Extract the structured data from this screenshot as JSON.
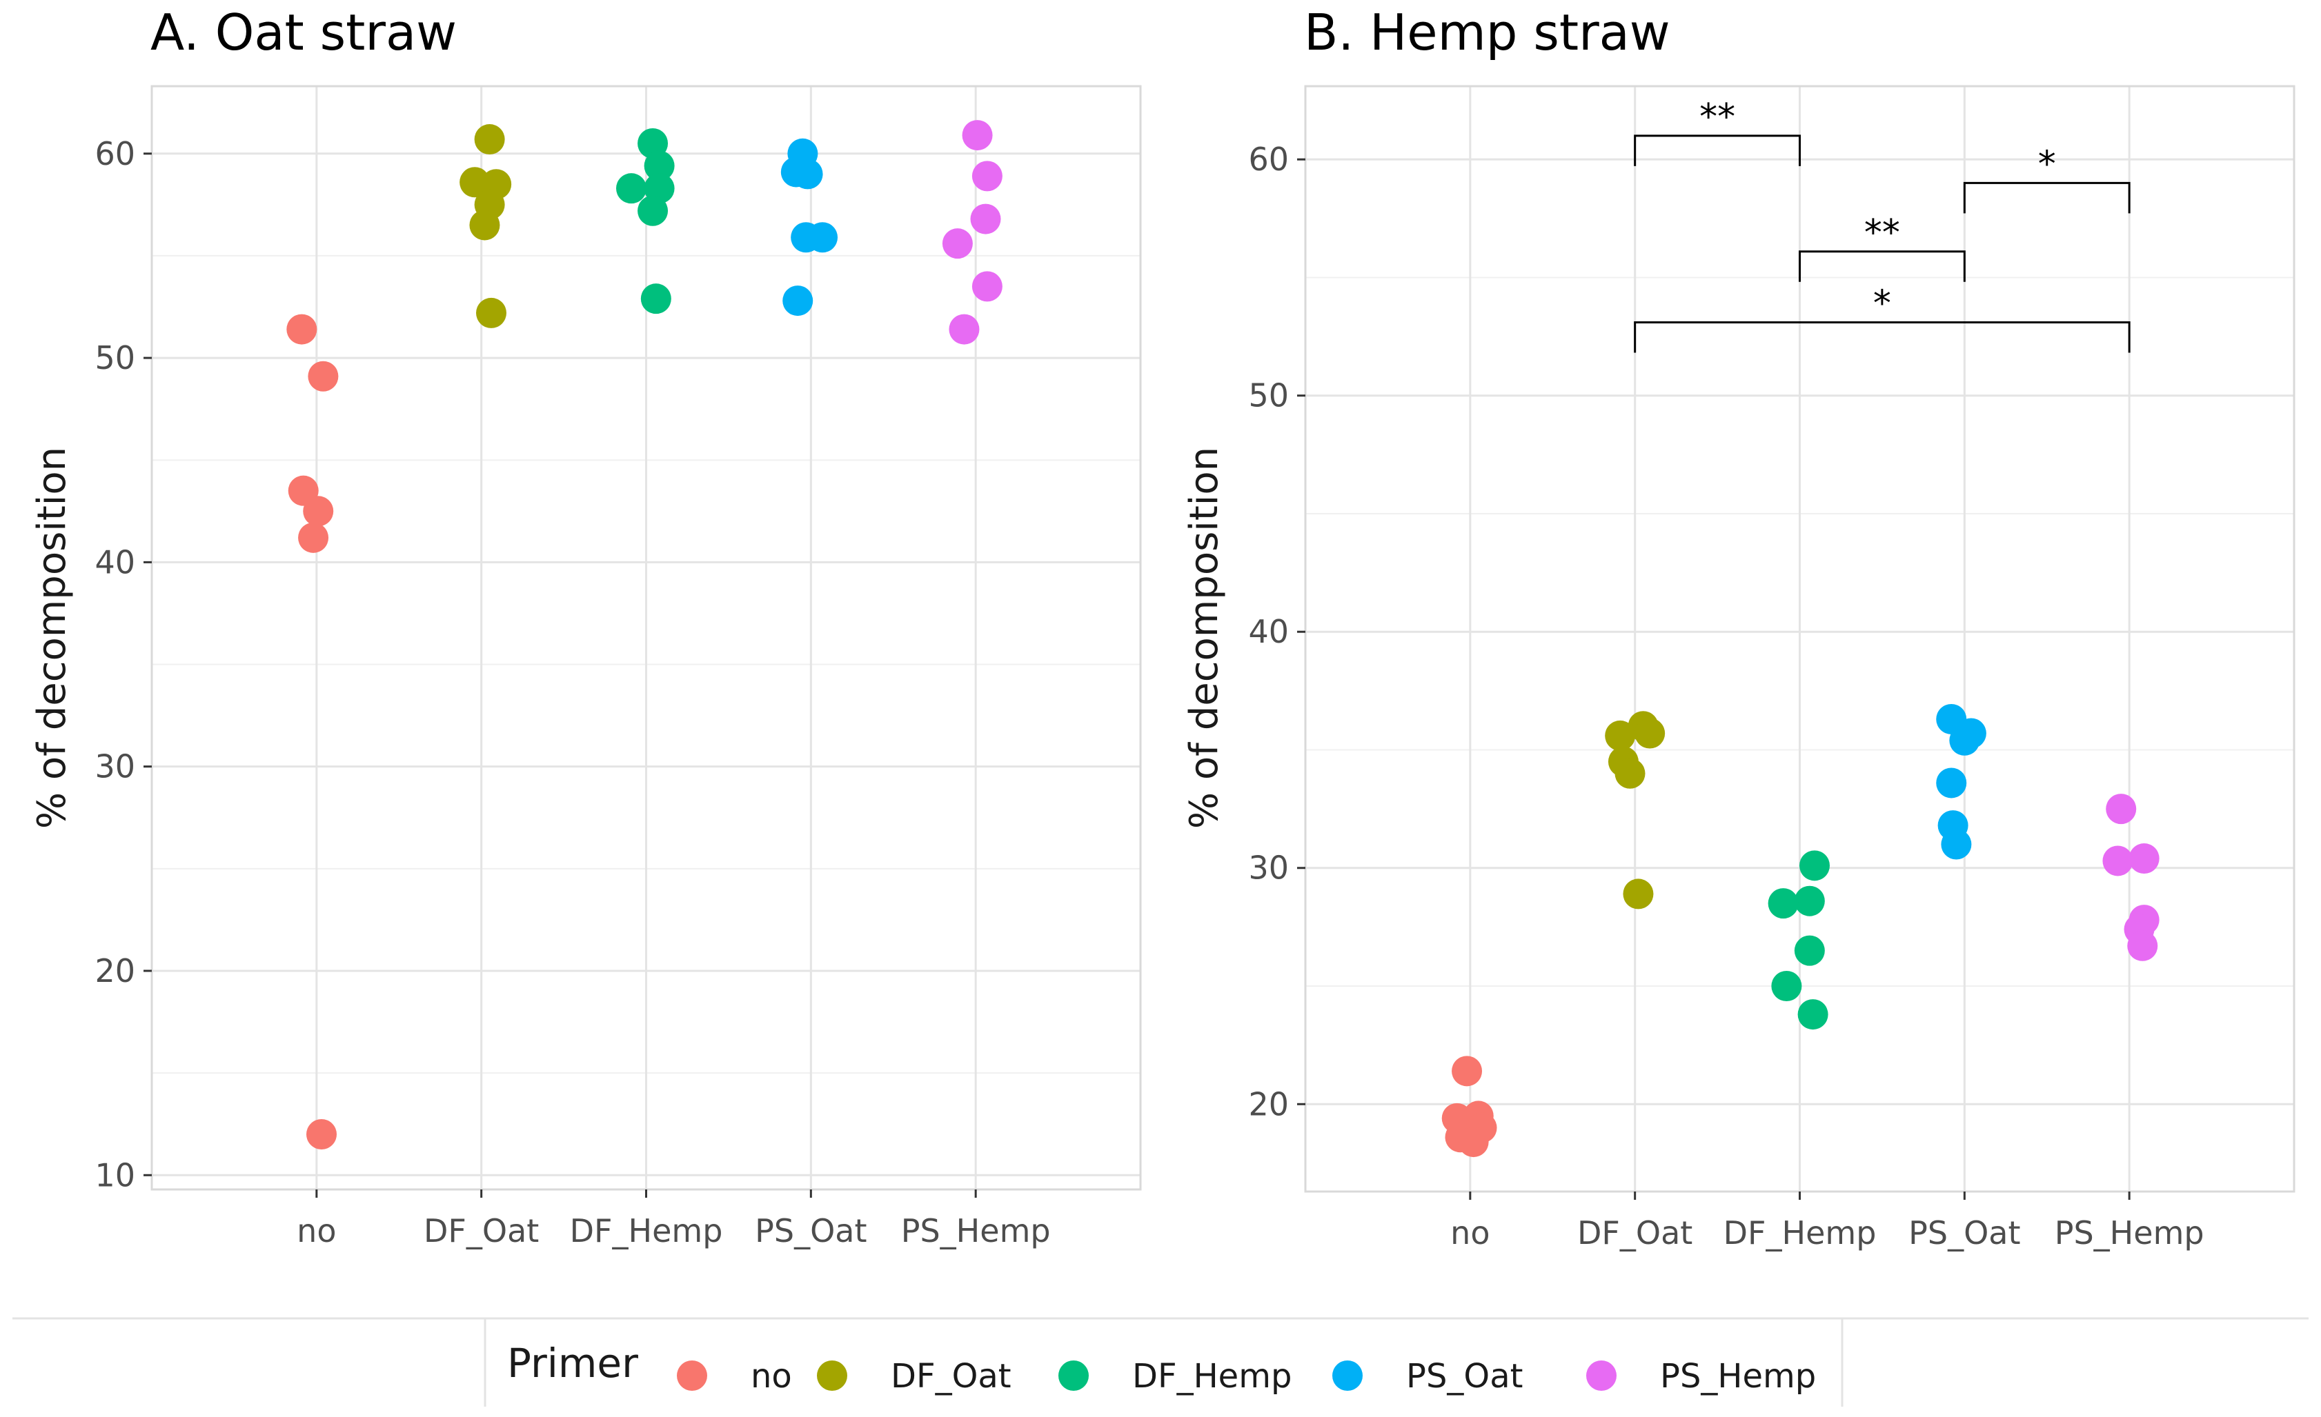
{
  "chart_data": [
    {
      "type": "scatter",
      "title": "A. Oat straw",
      "xlabel": "",
      "ylabel": "% of decomposition",
      "categories": [
        "no",
        "DF_Oat",
        "DF_Hemp",
        "PS_Oat",
        "PS_Hemp"
      ],
      "ylim": [
        9.3,
        63.3
      ],
      "yticks": [
        10,
        20,
        30,
        40,
        50,
        60
      ],
      "grid": true,
      "series": [
        {
          "name": "no",
          "points": [
            {
              "x": -0.09,
              "y": 51.4
            },
            {
              "x": 0.04,
              "y": 49.1
            },
            {
              "x": -0.08,
              "y": 43.5
            },
            {
              "x": 0.01,
              "y": 42.5
            },
            {
              "x": -0.02,
              "y": 41.2
            },
            {
              "x": 0.03,
              "y": 12.0
            }
          ]
        },
        {
          "name": "DF_Oat",
          "points": [
            {
              "x": 0.05,
              "y": 60.7
            },
            {
              "x": -0.04,
              "y": 58.6
            },
            {
              "x": 0.09,
              "y": 58.5
            },
            {
              "x": 0.05,
              "y": 57.5
            },
            {
              "x": 0.02,
              "y": 56.5
            },
            {
              "x": 0.06,
              "y": 52.2
            }
          ]
        },
        {
          "name": "DF_Hemp",
          "points": [
            {
              "x": 0.04,
              "y": 60.5
            },
            {
              "x": 0.08,
              "y": 59.4
            },
            {
              "x": -0.09,
              "y": 58.3
            },
            {
              "x": 0.08,
              "y": 58.3
            },
            {
              "x": 0.04,
              "y": 57.2
            },
            {
              "x": 0.06,
              "y": 52.9
            }
          ]
        },
        {
          "name": "PS_Oat",
          "points": [
            {
              "x": -0.05,
              "y": 60.0
            },
            {
              "x": -0.09,
              "y": 59.1
            },
            {
              "x": -0.02,
              "y": 59.0
            },
            {
              "x": -0.03,
              "y": 55.9
            },
            {
              "x": 0.07,
              "y": 55.9
            },
            {
              "x": -0.08,
              "y": 52.8
            }
          ]
        },
        {
          "name": "PS_Hemp",
          "points": [
            {
              "x": 0.01,
              "y": 60.9
            },
            {
              "x": 0.07,
              "y": 58.9
            },
            {
              "x": 0.06,
              "y": 56.8
            },
            {
              "x": -0.11,
              "y": 55.6
            },
            {
              "x": 0.07,
              "y": 53.5
            },
            {
              "x": -0.07,
              "y": 51.4
            }
          ]
        }
      ],
      "annotations": []
    },
    {
      "type": "scatter",
      "title": "B. Hemp straw",
      "xlabel": "",
      "ylabel": "% of decomposition",
      "categories": [
        "no",
        "DF_Oat",
        "DF_Hemp",
        "PS_Oat",
        "PS_Hemp"
      ],
      "ylim": [
        16.3,
        63.1
      ],
      "yticks": [
        20,
        30,
        40,
        50,
        60
      ],
      "grid": true,
      "series": [
        {
          "name": "no",
          "points": [
            {
              "x": -0.02,
              "y": 21.4
            },
            {
              "x": 0.05,
              "y": 19.5
            },
            {
              "x": -0.08,
              "y": 19.4
            },
            {
              "x": 0.07,
              "y": 19.0
            },
            {
              "x": -0.06,
              "y": 18.6
            },
            {
              "x": 0.02,
              "y": 18.4
            }
          ]
        },
        {
          "name": "DF_Oat",
          "points": [
            {
              "x": 0.05,
              "y": 36.0
            },
            {
              "x": 0.09,
              "y": 35.7
            },
            {
              "x": -0.09,
              "y": 35.6
            },
            {
              "x": -0.07,
              "y": 34.5
            },
            {
              "x": -0.03,
              "y": 34.0
            },
            {
              "x": 0.02,
              "y": 28.9
            }
          ]
        },
        {
          "name": "DF_Hemp",
          "points": [
            {
              "x": 0.09,
              "y": 30.1
            },
            {
              "x": 0.06,
              "y": 28.6
            },
            {
              "x": -0.1,
              "y": 28.5
            },
            {
              "x": 0.06,
              "y": 26.5
            },
            {
              "x": -0.08,
              "y": 25.0
            },
            {
              "x": 0.08,
              "y": 23.8
            }
          ]
        },
        {
          "name": "PS_Oat",
          "points": [
            {
              "x": -0.08,
              "y": 36.3
            },
            {
              "x": 0.04,
              "y": 35.7
            },
            {
              "x": 0.0,
              "y": 35.4
            },
            {
              "x": -0.08,
              "y": 33.6
            },
            {
              "x": -0.07,
              "y": 31.8
            },
            {
              "x": -0.05,
              "y": 31.0
            }
          ]
        },
        {
          "name": "PS_Hemp",
          "points": [
            {
              "x": -0.05,
              "y": 32.5
            },
            {
              "x": 0.09,
              "y": 30.4
            },
            {
              "x": -0.07,
              "y": 30.3
            },
            {
              "x": 0.09,
              "y": 27.8
            },
            {
              "x": 0.06,
              "y": 27.4
            },
            {
              "x": 0.08,
              "y": 26.7
            }
          ]
        }
      ],
      "annotations": [
        {
          "from": "DF_Oat",
          "to": "DF_Hemp",
          "y": 61.0,
          "label": "**"
        },
        {
          "from": "PS_Oat",
          "to": "PS_Hemp",
          "y": 59.0,
          "label": "*"
        },
        {
          "from": "DF_Hemp",
          "to": "PS_Oat",
          "y": 56.1,
          "label": "**"
        },
        {
          "from": "DF_Oat",
          "to": "PS_Hemp",
          "y": 53.1,
          "label": "*"
        }
      ]
    }
  ],
  "legend": {
    "title": "Primer",
    "position": "bottom",
    "items": [
      {
        "label": "no",
        "color": "#F8766D"
      },
      {
        "label": "DF_Oat",
        "color": "#A3A500"
      },
      {
        "label": "DF_Hemp",
        "color": "#00BF7D"
      },
      {
        "label": "PS_Oat",
        "color": "#00B0F6"
      },
      {
        "label": "PS_Hemp",
        "color": "#E76BF3"
      }
    ]
  }
}
